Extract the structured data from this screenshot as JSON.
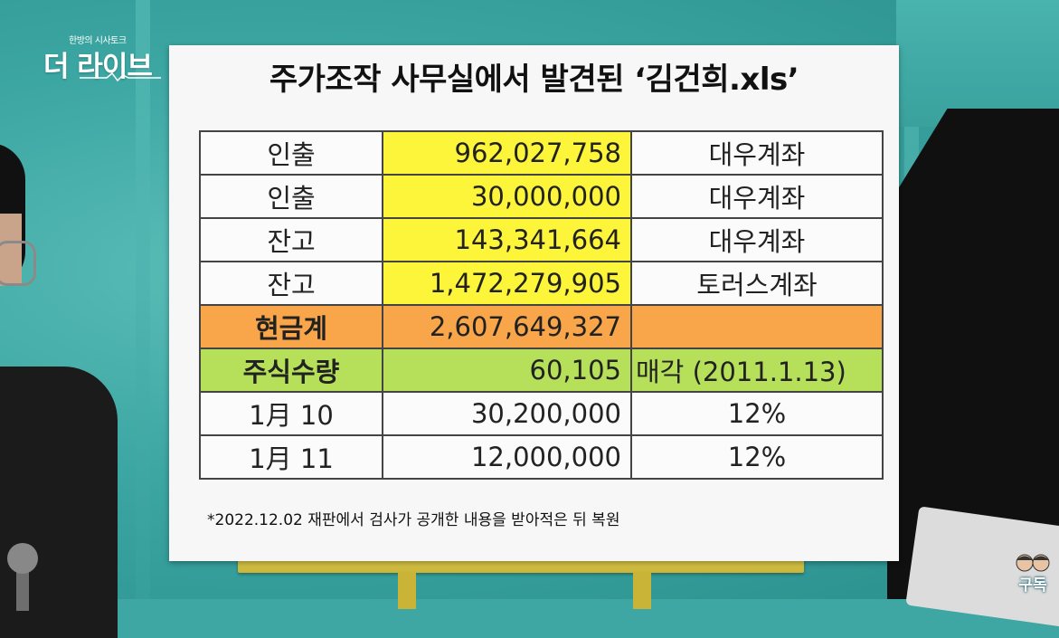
{
  "logo": {
    "sub": "한방의 시사토크",
    "main": "더 라이브"
  },
  "board": {
    "title": "주가조작 사무실에서 발견된 ‘김건희.xls’",
    "rows": [
      {
        "label": "인출",
        "amount": "962,027,758",
        "note": "대우계좌",
        "style": "yellow"
      },
      {
        "label": "인출",
        "amount": "30,000,000",
        "note": "대우계좌",
        "style": "yellow"
      },
      {
        "label": "잔고",
        "amount": "143,341,664",
        "note": "대우계좌",
        "style": "yellow"
      },
      {
        "label": "잔고",
        "amount": "1,472,279,905",
        "note": "토러스계좌",
        "style": "yellow"
      },
      {
        "label": "현금계",
        "amount": "2,607,649,327",
        "note": "",
        "style": "orange"
      },
      {
        "label": "주식수량",
        "amount": "60,105",
        "note": "매각 (2011.1.13)",
        "style": "green"
      },
      {
        "label": "1月 10",
        "amount": "30,200,000",
        "note": "12%",
        "style": "white"
      },
      {
        "label": "1月 11",
        "amount": "12,000,000",
        "note": "12%",
        "style": "white"
      }
    ],
    "footnote": "*2022.12.02 재판에서 검사가 공개한 내용을 받아적은 뒤 복원"
  },
  "subscribe_badge": {
    "label": "구독",
    "icon": "hosts-faces-icon"
  },
  "colors": {
    "yellow": "#fcf53a",
    "orange": "#f9a54a",
    "green": "#b6df5a",
    "background": "#3fa7a3"
  }
}
